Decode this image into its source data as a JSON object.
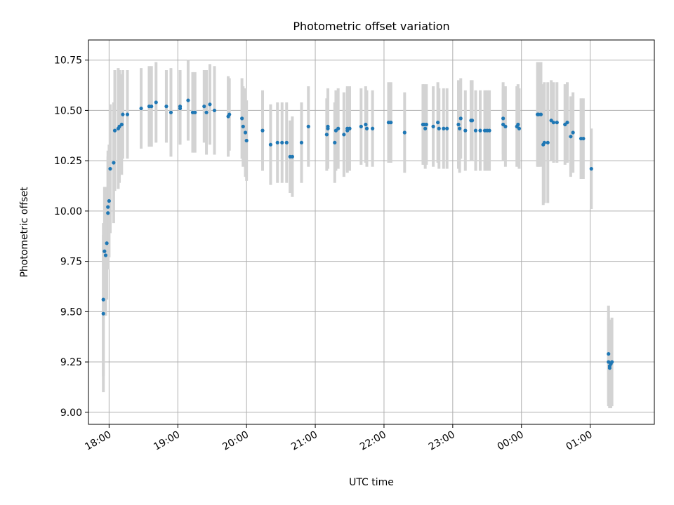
{
  "chart_data": {
    "type": "scatter",
    "title": "Photometric offset variation",
    "xlabel": "UTC time",
    "ylabel": "Photometric offset",
    "xlim": [
      "17:42",
      "01:56"
    ],
    "ylim": [
      8.94,
      10.85
    ],
    "grid": true,
    "x_ticks": [
      "18:00",
      "19:00",
      "20:00",
      "21:00",
      "22:00",
      "23:00",
      "00:00",
      "01:00"
    ],
    "y_ticks": [
      "9.00",
      "9.25",
      "9.50",
      "9.75",
      "10.00",
      "10.25",
      "10.50",
      "10.75"
    ],
    "colors": {
      "points": "#1f77b4",
      "errorbars": "#d3d3d3",
      "grid": "#b0b0b0"
    },
    "series": [
      {
        "x": [
          "17:55",
          "17:55",
          "17:56",
          "17:57",
          "17:58",
          "17:59",
          "17:59",
          "18:00",
          "18:01",
          "18:04",
          "18:05",
          "18:08",
          "18:09",
          "18:11",
          "18:12",
          "18:16",
          "18:28",
          "18:35",
          "18:37",
          "18:41",
          "18:50",
          "18:54",
          "19:02",
          "19:02",
          "19:09",
          "19:13",
          "19:15",
          "19:23",
          "19:25",
          "19:28",
          "19:32",
          "19:44",
          "19:45",
          "19:56",
          "19:57",
          "19:59",
          "20:00",
          "20:14",
          "20:21",
          "20:27",
          "20:31",
          "20:35",
          "20:38",
          "20:40",
          "20:48",
          "20:54",
          "21:10",
          "21:11",
          "21:11",
          "21:17",
          "21:18",
          "21:20",
          "21:25",
          "21:28",
          "21:28",
          "21:30",
          "21:40",
          "21:44",
          "21:45",
          "21:50",
          "22:04",
          "22:06",
          "22:18",
          "22:34",
          "22:35",
          "22:36",
          "22:37",
          "22:43",
          "22:47",
          "22:48",
          "22:52",
          "22:55",
          "23:05",
          "23:06",
          "23:07",
          "23:11",
          "23:16",
          "23:17",
          "23:20",
          "23:24",
          "23:28",
          "23:30",
          "23:32",
          "23:44",
          "23:44",
          "23:46",
          "23:56",
          "23:57",
          "23:58",
          "00:14",
          "00:15",
          "00:17",
          "00:19",
          "00:20",
          "00:23",
          "00:26",
          "00:28",
          "00:31",
          "00:38",
          "00:40",
          "00:43",
          "00:45",
          "00:52",
          "00:54",
          "01:01",
          "01:16",
          "01:16",
          "01:17",
          "01:17",
          "01:18",
          "01:19"
        ],
        "y": [
          9.49,
          9.56,
          9.8,
          9.78,
          9.84,
          10.02,
          9.99,
          10.05,
          10.21,
          10.24,
          10.4,
          10.41,
          10.42,
          10.43,
          10.48,
          10.48,
          10.51,
          10.52,
          10.52,
          10.54,
          10.52,
          10.49,
          10.51,
          10.52,
          10.55,
          10.49,
          10.49,
          10.52,
          10.49,
          10.53,
          10.5,
          10.47,
          10.48,
          10.46,
          10.42,
          10.39,
          10.35,
          10.4,
          10.33,
          10.34,
          10.34,
          10.34,
          10.27,
          10.27,
          10.34,
          10.42,
          10.38,
          10.42,
          10.41,
          10.34,
          10.4,
          10.41,
          10.38,
          10.4,
          10.41,
          10.41,
          10.42,
          10.43,
          10.41,
          10.41,
          10.44,
          10.44,
          10.39,
          10.43,
          10.43,
          10.41,
          10.43,
          10.42,
          10.44,
          10.41,
          10.41,
          10.41,
          10.43,
          10.41,
          10.46,
          10.4,
          10.45,
          10.45,
          10.4,
          10.4,
          10.4,
          10.4,
          10.4,
          10.46,
          10.43,
          10.42,
          10.42,
          10.43,
          10.41,
          10.48,
          10.48,
          10.48,
          10.33,
          10.34,
          10.34,
          10.45,
          10.44,
          10.44,
          10.43,
          10.44,
          10.37,
          10.39,
          10.36,
          10.36,
          10.21,
          9.29,
          9.25,
          9.23,
          9.22,
          9.24,
          9.25
        ],
        "yerr": [
          0.39,
          0.38,
          0.32,
          0.3,
          0.28,
          0.28,
          0.28,
          0.28,
          0.32,
          0.3,
          0.3,
          0.3,
          0.28,
          0.25,
          0.22,
          0.22,
          0.2,
          0.2,
          0.2,
          0.2,
          0.18,
          0.22,
          0.18,
          0.18,
          0.2,
          0.2,
          0.2,
          0.18,
          0.21,
          0.2,
          0.22,
          0.2,
          0.18,
          0.2,
          0.2,
          0.22,
          0.2,
          0.2,
          0.2,
          0.2,
          0.2,
          0.2,
          0.18,
          0.2,
          0.2,
          0.2,
          0.18,
          0.18,
          0.2,
          0.2,
          0.2,
          0.2,
          0.21,
          0.21,
          0.21,
          0.21,
          0.19,
          0.19,
          0.19,
          0.19,
          0.2,
          0.2,
          0.2,
          0.2,
          0.2,
          0.2,
          0.2,
          0.2,
          0.2,
          0.2,
          0.2,
          0.2,
          0.22,
          0.22,
          0.2,
          0.2,
          0.2,
          0.2,
          0.2,
          0.2,
          0.2,
          0.2,
          0.2,
          0.18,
          0.18,
          0.2,
          0.2,
          0.2,
          0.2,
          0.26,
          0.26,
          0.26,
          0.3,
          0.3,
          0.3,
          0.2,
          0.2,
          0.2,
          0.2,
          0.2,
          0.2,
          0.2,
          0.2,
          0.2,
          0.2,
          0.24,
          0.22,
          0.21,
          0.2,
          0.22,
          0.22
        ]
      }
    ]
  }
}
